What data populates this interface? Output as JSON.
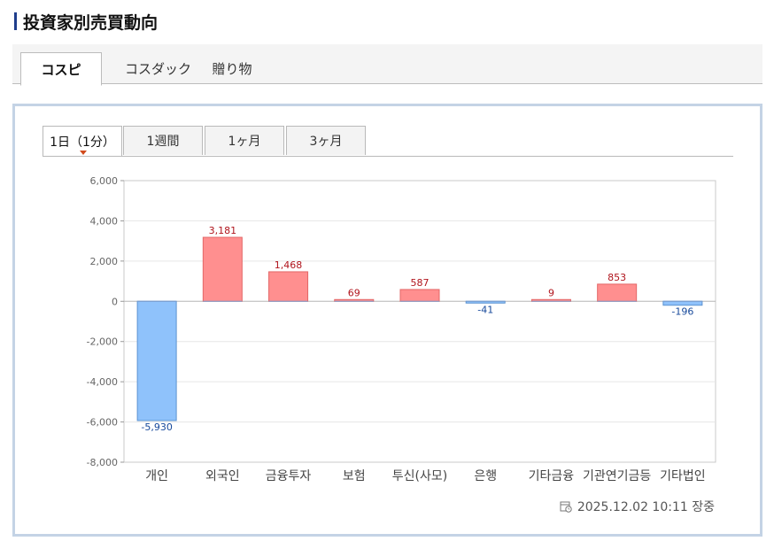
{
  "page": {
    "title": "投資家別売買動向"
  },
  "market_tabs": [
    {
      "label": "コスピ",
      "active": true
    },
    {
      "label": "コスダック",
      "active": false
    },
    {
      "label": "贈り物",
      "active": false
    }
  ],
  "period_tabs": [
    {
      "label": "1日（1分）",
      "active": true
    },
    {
      "label": "1週間",
      "active": false
    },
    {
      "label": "1ヶ月",
      "active": false
    },
    {
      "label": "3ヶ月",
      "active": false
    }
  ],
  "timestamp": "2025.12.02 10:11 장중",
  "icons": {
    "timestamp": "calendar-clock-icon"
  },
  "colors": {
    "positive_fill": "#ff8f8f",
    "positive_stroke": "#e36767",
    "positive_label": "#b0141c",
    "negative_fill": "#8fc2fb",
    "negative_stroke": "#5c93d1",
    "negative_label": "#17499b",
    "accent": "#1f3e8c"
  },
  "chart_data": {
    "type": "bar",
    "categories": [
      "개인",
      "외국인",
      "금융투자",
      "보험",
      "투신(사모)",
      "은행",
      "기타금융",
      "기관연기금등",
      "기타법인"
    ],
    "values": [
      -5930,
      3181,
      1468,
      69,
      587,
      -41,
      9,
      853,
      -196
    ],
    "data_labels": [
      "-5,930",
      "3,181",
      "1,468",
      "69",
      "587",
      "-41",
      "9",
      "853",
      "-196"
    ],
    "yticks": [
      "6,000",
      "4,000",
      "2,000",
      "0",
      "-2,000",
      "-4,000",
      "-6,000",
      "-8,000"
    ],
    "ytick_values": [
      6000,
      4000,
      2000,
      0,
      -2000,
      -4000,
      -6000,
      -8000
    ],
    "ylim": [
      -8000,
      6000
    ],
    "grid": true,
    "legend": "none",
    "title": "",
    "xlabel": "",
    "ylabel": ""
  }
}
